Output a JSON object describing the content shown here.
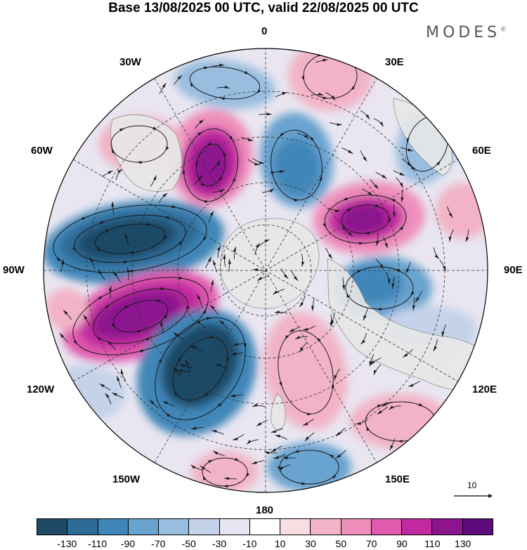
{
  "title": "Base 13/08/2025 00 UTC, valid 22/08/2025 00 UTC",
  "brand": "MODES",
  "brand_mark": "©",
  "longitude_labels": {
    "top": "0",
    "bottom": "180",
    "left": "90W",
    "right": "90E",
    "w30": "30W",
    "e30": "30E",
    "w60": "60W",
    "e60": "60E",
    "w120": "120W",
    "e120": "120E",
    "w150": "150W",
    "e150": "150E"
  },
  "reference_vector": "10",
  "colorbar": {
    "colors": [
      "#1f4a66",
      "#2d6a96",
      "#3f86b8",
      "#69a3cf",
      "#98bddf",
      "#c4d3ea",
      "#e6e6f2",
      "#ffffff",
      "#f9dde2",
      "#f2b3c6",
      "#ee8fbb",
      "#e05aae",
      "#c1299f",
      "#8c148f",
      "#5e0b7d"
    ],
    "tick_labels": [
      "-130",
      "-110",
      "-90",
      "-70",
      "-50",
      "-30",
      "-10",
      "10",
      "30",
      "50",
      "70",
      "90",
      "110",
      "130"
    ]
  },
  "colors": {
    "land": "#e8e8e8",
    "coast": "#888888",
    "grid": "#333333",
    "streamline": "#1a1a1a"
  }
}
